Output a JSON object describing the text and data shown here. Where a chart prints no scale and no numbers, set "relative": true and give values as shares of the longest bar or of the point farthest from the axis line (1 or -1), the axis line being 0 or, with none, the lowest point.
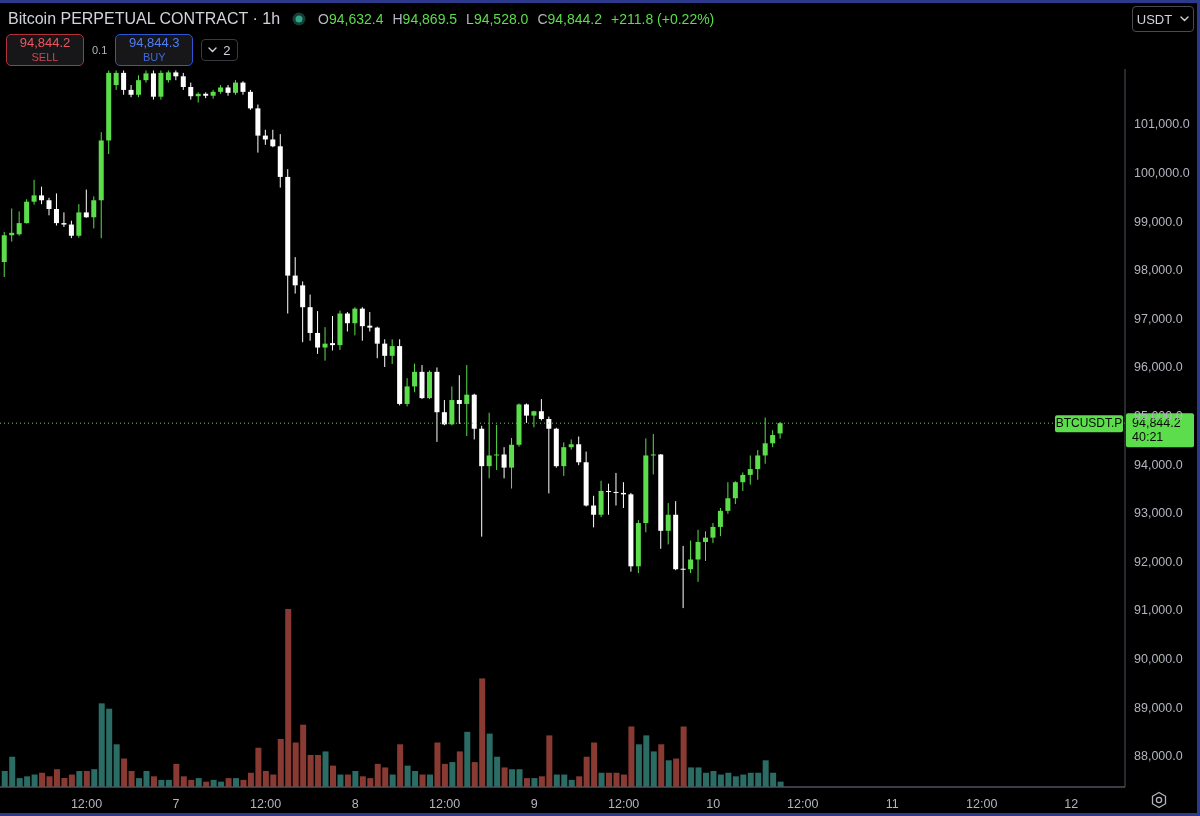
{
  "chart_data": [
    {
      "type": "candlestick",
      "title": "Bitcoin PERPETUAL CONTRACT · 1h",
      "ylabel": "USDT",
      "annotations": [
        "O94,632.4",
        "H94,869.5",
        "L94,528.0",
        "C94,844.2",
        "+211.8 (+0.22%)",
        "94,844.2",
        "SELL",
        "0.1",
        "94,844.3",
        "BUY",
        "2",
        "40:21"
      ],
      "x": [
        "--01-06T01:00",
        "--01-06T02:00",
        "--01-06T03:00",
        "--01-06T04:00",
        "--01-06T05:00",
        "--01-06T06:00",
        "--01-06T07:00",
        "--01-06T08:00",
        "--01-06T09:00",
        "--01-06T10:00",
        "--01-06T11:00",
        "--01-06T12:00",
        "--01-06T13:00",
        "--01-06T14:00",
        "--01-06T15:00",
        "--01-06T16:00",
        "--01-06T17:00",
        "--01-06T18:00",
        "--01-06T19:00",
        "--01-06T20:00",
        "--01-06T21:00",
        "--01-06T22:00",
        "--01-06T23:00",
        "--01-07T00:00",
        "--01-07T01:00",
        "--01-07T02:00",
        "--01-07T03:00",
        "--01-07T04:00",
        "--01-07T05:00",
        "--01-07T06:00",
        "--01-07T07:00",
        "--01-07T08:00",
        "--01-07T09:00",
        "--01-07T10:00",
        "--01-07T11:00",
        "--01-07T12:00",
        "--01-07T13:00",
        "--01-07T14:00",
        "--01-07T15:00",
        "--01-07T16:00",
        "--01-07T17:00",
        "--01-07T18:00",
        "--01-07T19:00",
        "--01-07T20:00",
        "--01-07T21:00",
        "--01-07T22:00",
        "--01-07T23:00",
        "--01-08T00:00",
        "--01-08T01:00",
        "--01-08T02:00",
        "--01-08T03:00",
        "--01-08T04:00",
        "--01-08T05:00",
        "--01-08T06:00",
        "--01-08T07:00",
        "--01-08T08:00",
        "--01-08T09:00",
        "--01-08T10:00",
        "--01-08T11:00",
        "--01-08T12:00",
        "--01-08T13:00",
        "--01-08T14:00",
        "--01-08T15:00",
        "--01-08T16:00",
        "--01-08T17:00",
        "--01-08T18:00",
        "--01-08T19:00",
        "--01-08T20:00",
        "--01-08T21:00",
        "--01-08T22:00",
        "--01-08T23:00",
        "--01-09T00:00",
        "--01-09T01:00",
        "--01-09T02:00",
        "--01-09T03:00",
        "--01-09T04:00",
        "--01-09T05:00",
        "--01-09T06:00",
        "--01-09T07:00",
        "--01-09T08:00",
        "--01-09T09:00",
        "--01-09T10:00",
        "--01-09T11:00",
        "--01-09T12:00",
        "--01-09T13:00",
        "--01-09T14:00",
        "--01-09T15:00",
        "--01-09T16:00",
        "--01-09T17:00",
        "--01-09T18:00",
        "--01-09T19:00",
        "--01-09T20:00",
        "--01-09T21:00",
        "--01-09T22:00",
        "--01-09T23:00",
        "--01-10T00:00",
        "--01-10T01:00",
        "--01-10T02:00",
        "--01-10T03:00",
        "--01-10T04:00",
        "--01-10T05:00",
        "--01-10T06:00",
        "--01-10T07:00",
        "--01-10T08:00",
        "--01-10T09:00"
      ],
      "xlim": [
        "--01-06T00:24",
        "--01-12T07:12"
      ],
      "xticks": [
        {
          "value": "--01-06T12:00",
          "label": "12:00"
        },
        {
          "value": "--01-07",
          "label": "7"
        },
        {
          "value": "--01-07T12:00",
          "label": "12:00"
        },
        {
          "value": "--01-08",
          "label": "8"
        },
        {
          "value": "--01-08T12:00",
          "label": "12:00"
        },
        {
          "value": "--01-09",
          "label": "9"
        },
        {
          "value": "--01-09T12:00",
          "label": "12:00"
        },
        {
          "value": "--01-10",
          "label": "10"
        },
        {
          "value": "--01-10T12:00",
          "label": "12:00"
        },
        {
          "value": "--01-11",
          "label": "11"
        },
        {
          "value": "--01-11T12:00",
          "label": "12:00"
        },
        {
          "value": "--01-12",
          "label": "12"
        }
      ],
      "ylim": [
        87360,
        102130
      ],
      "yticks": [
        {
          "value": 88000,
          "label": "88,000.0"
        },
        {
          "value": 89000,
          "label": "89,000.0"
        },
        {
          "value": 90000,
          "label": "90,000.0"
        },
        {
          "value": 91000,
          "label": "91,000.0"
        },
        {
          "value": 92000,
          "label": "92,000.0"
        },
        {
          "value": 93000,
          "label": "93,000.0"
        },
        {
          "value": 94000,
          "label": "94,000.0"
        },
        {
          "value": 95000,
          "label": "95,000.0"
        },
        {
          "value": 96000,
          "label": "96,000.0"
        },
        {
          "value": 97000,
          "label": "97,000.0"
        },
        {
          "value": 98000,
          "label": "98,000.0"
        },
        {
          "value": 99000,
          "label": "99,000.0"
        },
        {
          "value": 100000,
          "label": "100,000.0"
        },
        {
          "value": 101000,
          "label": "101,000.0"
        }
      ],
      "ohlc": [
        [
          98160,
          98780,
          97850,
          98710
        ],
        [
          98710,
          99260,
          98580,
          98760
        ],
        [
          98730,
          99200,
          98700,
          98960
        ],
        [
          98960,
          99450,
          98950,
          99400
        ],
        [
          99400,
          99850,
          99340,
          99530
        ],
        [
          99530,
          99710,
          99350,
          99430
        ],
        [
          99430,
          99480,
          99120,
          99250
        ],
        [
          99250,
          99570,
          98910,
          98960
        ],
        [
          98960,
          99180,
          98880,
          98930
        ],
        [
          98930,
          99010,
          98650,
          98700
        ],
        [
          98700,
          99350,
          98660,
          99180
        ],
        [
          99180,
          99650,
          99070,
          99080
        ],
        [
          99080,
          99510,
          98850,
          99430
        ],
        [
          99430,
          100830,
          98650,
          100660
        ],
        [
          100660,
          102100,
          100380,
          102050
        ],
        [
          101800,
          102100,
          101700,
          102050
        ],
        [
          102050,
          102100,
          101600,
          101700
        ],
        [
          101700,
          101800,
          101550,
          101600
        ],
        [
          101600,
          102000,
          101550,
          101900
        ],
        [
          101900,
          102100,
          101850,
          102040
        ],
        [
          102040,
          102100,
          101500,
          101560
        ],
        [
          101560,
          102100,
          101500,
          102050
        ],
        [
          101900,
          102100,
          101850,
          102060
        ],
        [
          102060,
          102100,
          101900,
          101980
        ],
        [
          101980,
          102050,
          101700,
          101760
        ],
        [
          101760,
          101850,
          101500,
          101570
        ],
        [
          101570,
          101650,
          101440,
          101620
        ],
        [
          101620,
          101650,
          101530,
          101580
        ],
        [
          101580,
          101700,
          101520,
          101660
        ],
        [
          101660,
          101800,
          101620,
          101750
        ],
        [
          101750,
          101800,
          101580,
          101640
        ],
        [
          101640,
          101900,
          101600,
          101850
        ],
        [
          101850,
          101880,
          101600,
          101660
        ],
        [
          101660,
          101700,
          101290,
          101320
        ],
        [
          101320,
          101400,
          100410,
          100760
        ],
        [
          100760,
          100880,
          100570,
          100680
        ],
        [
          100680,
          100880,
          100520,
          100540
        ],
        [
          100540,
          100790,
          99690,
          99910
        ],
        [
          99910,
          100070,
          97100,
          97880
        ],
        [
          97880,
          98260,
          97510,
          97680
        ],
        [
          97680,
          97760,
          96510,
          97230
        ],
        [
          97230,
          97490,
          96540,
          96700
        ],
        [
          96700,
          97150,
          96270,
          96400
        ],
        [
          96400,
          96820,
          96130,
          96480
        ],
        [
          96490,
          97050,
          96340,
          96450
        ],
        [
          96450,
          97160,
          96350,
          97100
        ],
        [
          97100,
          97130,
          96730,
          96900
        ],
        [
          96900,
          97230,
          96650,
          97200
        ],
        [
          97200,
          97230,
          96540,
          96840
        ],
        [
          96850,
          97130,
          96730,
          96810
        ],
        [
          96810,
          96830,
          96180,
          96480
        ],
        [
          96480,
          96570,
          96000,
          96230
        ],
        [
          96230,
          96570,
          96060,
          96430
        ],
        [
          96430,
          96570,
          95210,
          95240
        ],
        [
          95240,
          95770,
          95190,
          95600
        ],
        [
          95600,
          96070,
          95480,
          95900
        ],
        [
          95900,
          96040,
          95340,
          95360
        ],
        [
          95360,
          95930,
          95340,
          95900
        ],
        [
          95900,
          95990,
          94460,
          95070
        ],
        [
          95070,
          95320,
          94800,
          94820
        ],
        [
          94820,
          95600,
          94800,
          95320
        ],
        [
          95320,
          95830,
          94830,
          95240
        ],
        [
          95240,
          96040,
          94580,
          95430
        ],
        [
          95430,
          95450,
          94510,
          94730
        ],
        [
          94730,
          94790,
          92510,
          93960
        ],
        [
          93960,
          95060,
          93710,
          94180
        ],
        [
          94180,
          94810,
          93880,
          94200
        ],
        [
          94200,
          94350,
          93710,
          93930
        ],
        [
          93930,
          94540,
          93500,
          94400
        ],
        [
          94400,
          95250,
          94360,
          95230
        ],
        [
          95230,
          95250,
          94850,
          95000
        ],
        [
          95000,
          95100,
          94760,
          95090
        ],
        [
          95090,
          95340,
          94900,
          94930
        ],
        [
          94930,
          94980,
          93400,
          94730
        ],
        [
          94730,
          94750,
          93930,
          93960
        ],
        [
          93960,
          94450,
          93760,
          94350
        ],
        [
          94350,
          94510,
          94300,
          94410
        ],
        [
          94410,
          94570,
          93980,
          94040
        ],
        [
          94040,
          94260,
          93130,
          93150
        ],
        [
          93150,
          93350,
          92700,
          92960
        ],
        [
          92960,
          93660,
          92910,
          93450
        ],
        [
          93450,
          93600,
          92960,
          93430
        ],
        [
          93430,
          93820,
          93150,
          93410
        ],
        [
          93410,
          93630,
          93100,
          93380
        ],
        [
          93380,
          93410,
          91790,
          91900
        ],
        [
          91900,
          92850,
          91760,
          92790
        ],
        [
          92790,
          94530,
          92600,
          94180
        ],
        [
          94180,
          94620,
          93790,
          94200
        ],
        [
          94200,
          94210,
          92260,
          92630
        ],
        [
          92630,
          93200,
          92350,
          92960
        ],
        [
          92960,
          93240,
          91820,
          91840
        ],
        [
          91850,
          92320,
          91040,
          91840
        ],
        [
          91840,
          92430,
          91760,
          92040
        ],
        [
          92040,
          92650,
          91580,
          92400
        ],
        [
          92400,
          92620,
          92010,
          92490
        ],
        [
          92490,
          92790,
          92380,
          92710
        ],
        [
          92710,
          93100,
          92520,
          93040
        ],
        [
          93040,
          93630,
          92980,
          93300
        ],
        [
          93300,
          93650,
          93180,
          93630
        ],
        [
          93630,
          93830,
          93450,
          93780
        ],
        [
          93780,
          94180,
          93580,
          93900
        ],
        [
          93900,
          94290,
          93680,
          94180
        ],
        [
          94180,
          94960,
          94010,
          94430
        ],
        [
          94430,
          94700,
          94350,
          94600
        ],
        [
          94632.4,
          94869.5,
          94528.0,
          94844.2
        ]
      ],
      "colors": [
        "#5cdd4b",
        "#5cdd4b",
        "#5cdd4b",
        "#5cdd4b",
        "#5cdd4b",
        "#ffffff",
        "#ffffff",
        "#ffffff",
        "#ffffff",
        "#ffffff",
        "#5cdd4b",
        "#ffffff",
        "#5cdd4b",
        "#5cdd4b",
        "#5cdd4b",
        "#5cdd4b",
        "#ffffff",
        "#ffffff",
        "#5cdd4b",
        "#5cdd4b",
        "#ffffff",
        "#5cdd4b",
        "#5cdd4b",
        "#ffffff",
        "#ffffff",
        "#ffffff",
        "#5cdd4b",
        "#ffffff",
        "#5cdd4b",
        "#5cdd4b",
        "#ffffff",
        "#5cdd4b",
        "#ffffff",
        "#ffffff",
        "#ffffff",
        "#ffffff",
        "#ffffff",
        "#ffffff",
        "#ffffff",
        "#ffffff",
        "#ffffff",
        "#ffffff",
        "#ffffff",
        "#5cdd4b",
        "#ffffff",
        "#5cdd4b",
        "#ffffff",
        "#5cdd4b",
        "#ffffff",
        "#ffffff",
        "#ffffff",
        "#ffffff",
        "#5cdd4b",
        "#ffffff",
        "#5cdd4b",
        "#5cdd4b",
        "#ffffff",
        "#5cdd4b",
        "#ffffff",
        "#ffffff",
        "#5cdd4b",
        "#ffffff",
        "#5cdd4b",
        "#ffffff",
        "#ffffff",
        "#5cdd4b",
        "#5cdd4b",
        "#ffffff",
        "#5cdd4b",
        "#5cdd4b",
        "#ffffff",
        "#5cdd4b",
        "#ffffff",
        "#ffffff",
        "#ffffff",
        "#5cdd4b",
        "#5cdd4b",
        "#ffffff",
        "#ffffff",
        "#ffffff",
        "#5cdd4b",
        "#ffffff",
        "#ffffff",
        "#ffffff",
        "#ffffff",
        "#5cdd4b",
        "#5cdd4b",
        "#5cdd4b",
        "#ffffff",
        "#5cdd4b",
        "#ffffff",
        "#ffffff",
        "#5cdd4b",
        "#5cdd4b",
        "#5cdd4b",
        "#5cdd4b",
        "#5cdd4b",
        "#5cdd4b",
        "#5cdd4b",
        "#5cdd4b",
        "#5cdd4b",
        "#5cdd4b",
        "#5cdd4b",
        "#5cdd4b",
        "#5cdd4b"
      ],
      "ref_lines": [
        {
          "axis": "y",
          "value": 94844.2,
          "label": "BTCUSDT.P",
          "color": "#5cdd4b",
          "line_style": "dotted"
        }
      ]
    },
    {
      "type": "bar",
      "relative": true,
      "tick_labels": false,
      "x": [
        "--01-06T01:00",
        "--01-06T02:00",
        "--01-06T03:00",
        "--01-06T04:00",
        "--01-06T05:00",
        "--01-06T06:00",
        "--01-06T07:00",
        "--01-06T08:00",
        "--01-06T09:00",
        "--01-06T10:00",
        "--01-06T11:00",
        "--01-06T12:00",
        "--01-06T13:00",
        "--01-06T14:00",
        "--01-06T15:00",
        "--01-06T16:00",
        "--01-06T17:00",
        "--01-06T18:00",
        "--01-06T19:00",
        "--01-06T20:00",
        "--01-06T21:00",
        "--01-06T22:00",
        "--01-06T23:00",
        "--01-07T00:00",
        "--01-07T01:00",
        "--01-07T02:00",
        "--01-07T03:00",
        "--01-07T04:00",
        "--01-07T05:00",
        "--01-07T06:00",
        "--01-07T07:00",
        "--01-07T08:00",
        "--01-07T09:00",
        "--01-07T10:00",
        "--01-07T11:00",
        "--01-07T12:00",
        "--01-07T13:00",
        "--01-07T14:00",
        "--01-07T15:00",
        "--01-07T16:00",
        "--01-07T17:00",
        "--01-07T18:00",
        "--01-07T19:00",
        "--01-07T20:00",
        "--01-07T21:00",
        "--01-07T22:00",
        "--01-07T23:00",
        "--01-08T00:00",
        "--01-08T01:00",
        "--01-08T02:00",
        "--01-08T03:00",
        "--01-08T04:00",
        "--01-08T05:00",
        "--01-08T06:00",
        "--01-08T07:00",
        "--01-08T08:00",
        "--01-08T09:00",
        "--01-08T10:00",
        "--01-08T11:00",
        "--01-08T12:00",
        "--01-08T13:00",
        "--01-08T14:00",
        "--01-08T15:00",
        "--01-08T16:00",
        "--01-08T17:00",
        "--01-08T18:00",
        "--01-08T19:00",
        "--01-08T20:00",
        "--01-08T21:00",
        "--01-08T22:00",
        "--01-08T23:00",
        "--01-09T00:00",
        "--01-09T01:00",
        "--01-09T02:00",
        "--01-09T03:00",
        "--01-09T04:00",
        "--01-09T05:00",
        "--01-09T06:00",
        "--01-09T07:00",
        "--01-09T08:00",
        "--01-09T09:00",
        "--01-09T10:00",
        "--01-09T11:00",
        "--01-09T12:00",
        "--01-09T13:00",
        "--01-09T14:00",
        "--01-09T15:00",
        "--01-09T16:00",
        "--01-09T17:00",
        "--01-09T18:00",
        "--01-09T19:00",
        "--01-09T20:00",
        "--01-09T21:00",
        "--01-09T22:00",
        "--01-09T23:00",
        "--01-10T00:00",
        "--01-10T01:00",
        "--01-10T02:00",
        "--01-10T03:00",
        "--01-10T04:00",
        "--01-10T05:00",
        "--01-10T06:00",
        "--01-10T07:00",
        "--01-10T08:00",
        "--01-10T09:00"
      ],
      "xlim": [
        "--01-06T00:24",
        "--01-12T07:12"
      ],
      "values": [
        0.09,
        0.17,
        0.05,
        0.06,
        0.07,
        0.08,
        0.06,
        0.1,
        0.05,
        0.07,
        0.09,
        0.09,
        0.1,
        0.47,
        0.44,
        0.24,
        0.16,
        0.09,
        0.05,
        0.09,
        0.06,
        0.04,
        0.04,
        0.13,
        0.06,
        0.04,
        0.05,
        0.03,
        0.04,
        0.03,
        0.05,
        0.05,
        0.04,
        0.08,
        0.22,
        0.09,
        0.07,
        0.27,
        1,
        0.25,
        0.35,
        0.18,
        0.18,
        0.2,
        0.12,
        0.07,
        0.07,
        0.09,
        0.06,
        0.05,
        0.13,
        0.11,
        0.07,
        0.24,
        0.12,
        0.09,
        0.07,
        0.07,
        0.25,
        0.13,
        0.14,
        0.2,
        0.31,
        0.14,
        0.61,
        0.3,
        0.17,
        0.11,
        0.1,
        0.1,
        0.05,
        0.05,
        0.06,
        0.29,
        0.07,
        0.07,
        0.04,
        0.06,
        0.17,
        0.25,
        0.08,
        0.08,
        0.08,
        0.07,
        0.34,
        0.24,
        0.29,
        0.2,
        0.24,
        0.15,
        0.16,
        0.34,
        0.11,
        0.11,
        0.08,
        0.09,
        0.07,
        0.08,
        0.06,
        0.07,
        0.08,
        0.08,
        0.15,
        0.08,
        0.03
      ],
      "colors": [
        "#2b6c65",
        "#2b6c65",
        "#2b6c65",
        "#2b6c65",
        "#2b6c65",
        "#893a33",
        "#893a33",
        "#893a33",
        "#893a33",
        "#893a33",
        "#2b6c65",
        "#893a33",
        "#2b6c65",
        "#2b6c65",
        "#2b6c65",
        "#2b6c65",
        "#893a33",
        "#893a33",
        "#2b6c65",
        "#2b6c65",
        "#893a33",
        "#2b6c65",
        "#2b6c65",
        "#893a33",
        "#893a33",
        "#893a33",
        "#2b6c65",
        "#893a33",
        "#2b6c65",
        "#2b6c65",
        "#893a33",
        "#2b6c65",
        "#893a33",
        "#893a33",
        "#893a33",
        "#893a33",
        "#893a33",
        "#893a33",
        "#893a33",
        "#893a33",
        "#893a33",
        "#893a33",
        "#893a33",
        "#2b6c65",
        "#893a33",
        "#2b6c65",
        "#893a33",
        "#2b6c65",
        "#893a33",
        "#893a33",
        "#893a33",
        "#893a33",
        "#2b6c65",
        "#893a33",
        "#2b6c65",
        "#2b6c65",
        "#893a33",
        "#2b6c65",
        "#893a33",
        "#893a33",
        "#2b6c65",
        "#893a33",
        "#2b6c65",
        "#893a33",
        "#893a33",
        "#2b6c65",
        "#2b6c65",
        "#893a33",
        "#2b6c65",
        "#2b6c65",
        "#893a33",
        "#2b6c65",
        "#893a33",
        "#893a33",
        "#2b6c65",
        "#2b6c65",
        "#2b6c65",
        "#893a33",
        "#893a33",
        "#893a33",
        "#2b6c65",
        "#893a33",
        "#893a33",
        "#893a33",
        "#893a33",
        "#2b6c65",
        "#2b6c65",
        "#2b6c65",
        "#893a33",
        "#2b6c65",
        "#893a33",
        "#893a33",
        "#2b6c65",
        "#2b6c65",
        "#2b6c65",
        "#2b6c65",
        "#2b6c65",
        "#2b6c65",
        "#2b6c65",
        "#2b6c65",
        "#2b6c65",
        "#2b6c65",
        "#2b6c65",
        "#2b6c65",
        "#2b6c65"
      ]
    }
  ]
}
